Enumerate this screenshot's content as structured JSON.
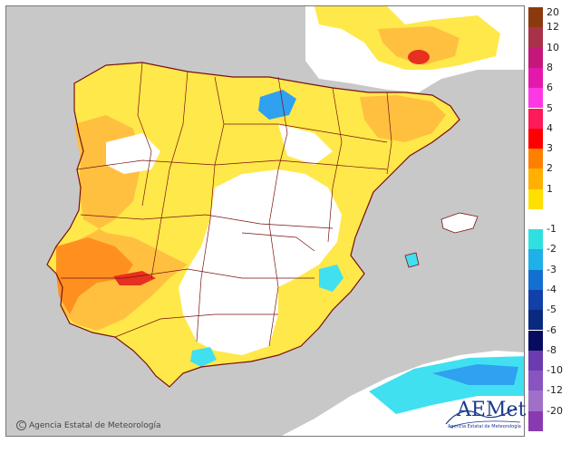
{
  "legend": {
    "entries": [
      {
        "label": "20",
        "color": "#8b3a0e"
      },
      {
        "label": "12",
        "color": "#a8324a"
      },
      {
        "label": "10",
        "color": "#c4177a"
      },
      {
        "label": "8",
        "color": "#e419ac"
      },
      {
        "label": "6",
        "color": "#ff38e6"
      },
      {
        "label": "5",
        "color": "#ff1a5a"
      },
      {
        "label": "4",
        "color": "#ff0000"
      },
      {
        "label": "3",
        "color": "#ff8000"
      },
      {
        "label": "2",
        "color": "#ffb000"
      },
      {
        "label": "1",
        "color": "#ffe000"
      },
      {
        "label": "-1",
        "color": "#30e0e0"
      },
      {
        "label": "-2",
        "color": "#1eb0e8"
      },
      {
        "label": "-3",
        "color": "#1470d0"
      },
      {
        "label": "-4",
        "color": "#1040a8"
      },
      {
        "label": "-5",
        "color": "#0a2a80"
      },
      {
        "label": "-6",
        "color": "#080c60"
      },
      {
        "label": "-8",
        "color": "#6a3cb0"
      },
      {
        "label": "-10",
        "color": "#8854c0"
      },
      {
        "label": "-12",
        "color": "#a070c8"
      },
      {
        "label": "-20",
        "color": "#8a3ab0"
      }
    ]
  },
  "credit": {
    "symbol": "C",
    "text": "Agencia Estatal de Meteorología"
  },
  "logo": {
    "name": "AEMet",
    "subtitle": "Agencia Estatal de Meteorología"
  },
  "colors": {
    "sea": "#c8c8c8",
    "land_neutral": "#ffffff",
    "warm_1": "#ffe84a",
    "warm_2": "#ffc040",
    "warm_3": "#ff9020",
    "warm_4": "#e83020",
    "cool_1": "#40e0f0",
    "cool_2": "#30a0f0",
    "border": "#7a1010"
  }
}
